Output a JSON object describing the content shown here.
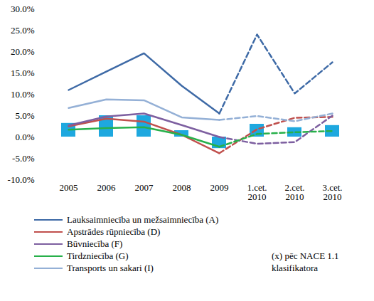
{
  "chart_data": {
    "type": "line",
    "note": "(x) pēc NACE 1.1 klasifikatora",
    "categories": [
      "2005",
      "2006",
      "2007",
      "2008",
      "2009",
      "1.cet. 2010",
      "2.cet. 2010",
      "3.cet. 2010"
    ],
    "ylim": [
      -10,
      30
    ],
    "yticks": [
      {
        "value": -10,
        "label": "-10.0%"
      },
      {
        "value": -5,
        "label": "-5.0%"
      },
      {
        "value": 0,
        "label": "0.0%"
      },
      {
        "value": 5,
        "label": "5.0%"
      },
      {
        "value": 10,
        "label": "10.0%"
      },
      {
        "value": 15,
        "label": "15.0%"
      },
      {
        "value": 20,
        "label": "20.0%"
      },
      {
        "value": 25,
        "label": "25.0%"
      },
      {
        "value": 30,
        "label": "30.0%"
      }
    ],
    "grid": false,
    "series": [
      {
        "type": "bar",
        "color": "#1ea8df",
        "values": [
          3.2,
          5.0,
          5.0,
          1.5,
          -2.7,
          3.0,
          2.2,
          2.7
        ]
      },
      {
        "name": "Lauksaimniecība un mežsaimniecība (A)",
        "color": "#3e6aa6",
        "line_style": "solid",
        "values": [
          11.0,
          15.3,
          19.6,
          12.0,
          5.5,
          null,
          null,
          null
        ]
      },
      {
        "name": "Lauksaimniecība un mežsaimniecība (A)",
        "color": "#3e6aa6",
        "line_style": "dashed",
        "values": [
          null,
          null,
          null,
          null,
          5.5,
          24.0,
          10.2,
          17.5
        ]
      },
      {
        "name": "Apstrādes rūpniecība (D)",
        "color": "#c0504d",
        "line_style": "solid",
        "values": [
          2.5,
          4.3,
          3.6,
          0.5,
          -3.8,
          null,
          null,
          null
        ]
      },
      {
        "name": "Apstrādes rūpniecība (D)",
        "color": "#c0504d",
        "line_style": "dashed",
        "values": [
          null,
          null,
          null,
          null,
          -3.8,
          1.8,
          4.5,
          4.7
        ]
      },
      {
        "name": "Būvniecība (F)",
        "color": "#7d5fa0",
        "line_style": "solid",
        "values": [
          2.7,
          4.8,
          5.5,
          2.8,
          0.0,
          null,
          null,
          null
        ]
      },
      {
        "name": "Būvniecība (F)",
        "color": "#7d5fa0",
        "line_style": "dashed",
        "values": [
          null,
          null,
          null,
          null,
          0.0,
          -1.6,
          -1.2,
          5.0
        ]
      },
      {
        "name": "Tirdzniecība (G)",
        "color": "#27b04a",
        "line_style": "solid",
        "values": [
          1.7,
          2.1,
          2.3,
          0.5,
          -2.3,
          null,
          null,
          null
        ]
      },
      {
        "name": "Tirdzniecība (G)",
        "color": "#27b04a",
        "line_style": "dashed",
        "values": [
          null,
          null,
          null,
          null,
          -2.3,
          0.7,
          1.1,
          1.4
        ]
      },
      {
        "name": "Transports un sakari (I)",
        "color": "#94b0d6",
        "line_style": "solid",
        "values": [
          6.8,
          8.8,
          8.6,
          4.6,
          4.0,
          null,
          null,
          null
        ]
      },
      {
        "name": "Transports un sakari (I)",
        "color": "#94b0d6",
        "line_style": "dashed",
        "values": [
          null,
          null,
          null,
          null,
          4.0,
          4.9,
          3.7,
          5.5
        ]
      }
    ]
  }
}
